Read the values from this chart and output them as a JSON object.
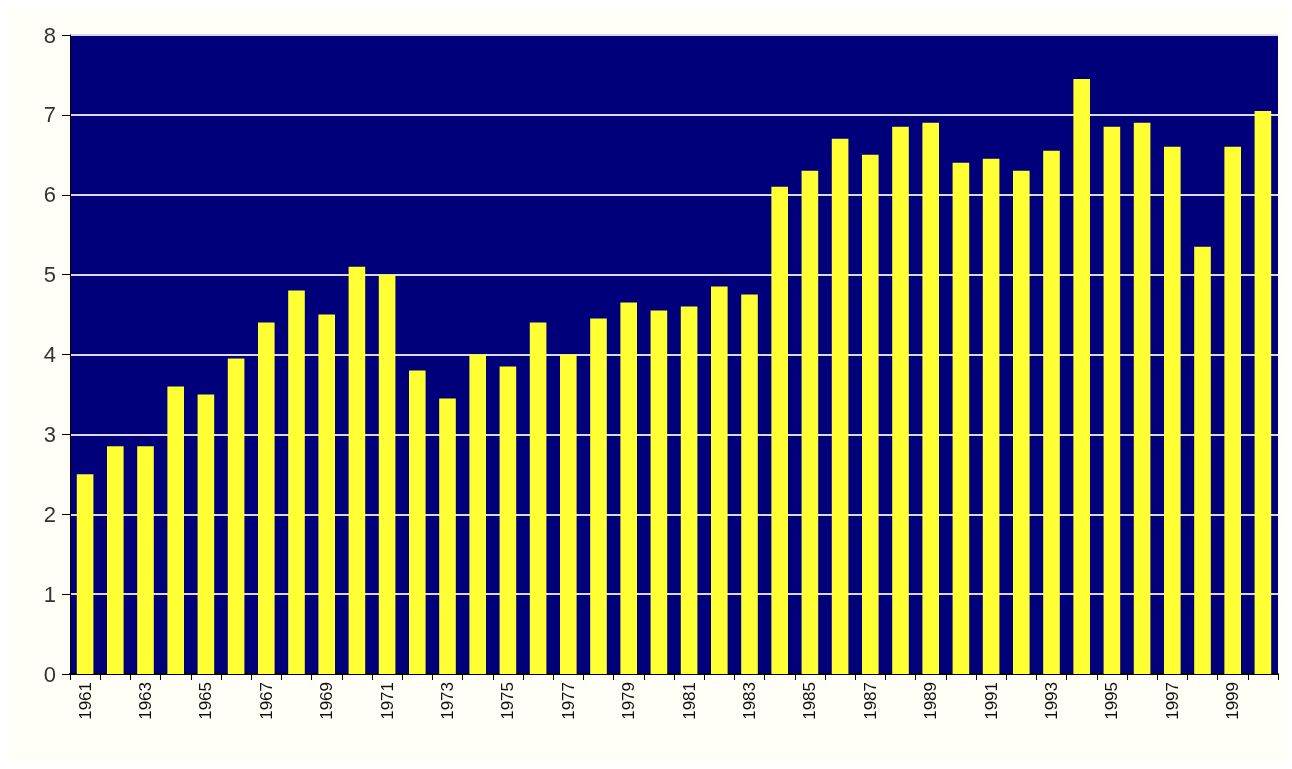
{
  "chart_data": {
    "type": "bar",
    "categories": [
      "1961",
      null,
      "1963",
      null,
      "1965",
      null,
      "1967",
      null,
      "1969",
      null,
      "1971",
      null,
      "1973",
      null,
      "1975",
      null,
      "1977",
      null,
      "1979",
      null,
      "1981",
      null,
      "1983",
      null,
      "1985",
      null,
      "1987",
      null,
      "1989",
      null,
      "1991",
      null,
      "1993",
      null,
      "1995",
      null,
      "1997",
      null,
      "1999",
      null
    ],
    "values": [
      2.5,
      2.85,
      2.85,
      3.6,
      3.5,
      3.95,
      4.4,
      4.8,
      4.5,
      5.1,
      5.0,
      3.8,
      3.45,
      4.0,
      3.85,
      4.4,
      4.0,
      4.45,
      4.65,
      4.55,
      4.6,
      4.85,
      4.75,
      6.1,
      6.3,
      6.7,
      6.5,
      6.85,
      6.9,
      6.4,
      6.45,
      6.3,
      6.55,
      7.45,
      6.85,
      6.9,
      6.6,
      5.35,
      6.6,
      7.05
    ],
    "color": "#ffff33",
    "ylim": [
      0,
      8
    ],
    "yticks": [
      0,
      1,
      2,
      3,
      4,
      5,
      6,
      7,
      8
    ],
    "grid": "y"
  }
}
